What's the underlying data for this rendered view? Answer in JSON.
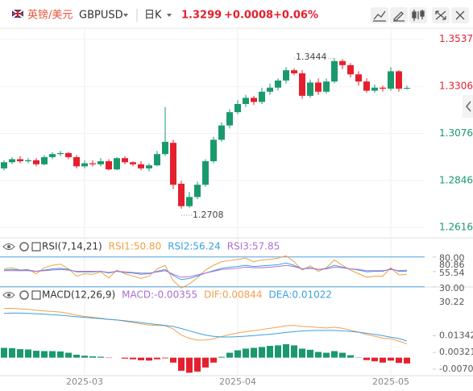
{
  "header": {
    "symbol_cn": "英镑/美元",
    "symbol": "GBPUSD",
    "period": "日K",
    "price": "1.3299",
    "change": "+0.0008",
    "change_pct": "+0.06%"
  },
  "chart_data": [
    {
      "type": "candlestick",
      "categories": [
        null,
        null,
        null,
        null,
        null,
        null,
        null,
        null,
        null,
        null,
        "2025-03",
        null,
        null,
        null,
        null,
        null,
        null,
        null,
        null,
        null,
        null,
        null,
        null,
        null,
        null,
        null,
        null,
        null,
        null,
        "2025-04",
        null,
        null,
        null,
        null,
        null,
        null,
        null,
        null,
        null,
        null,
        null,
        null,
        null,
        null,
        null,
        null,
        null,
        null,
        "2025-05",
        null,
        null
      ],
      "open": [
        1.2905,
        1.2935,
        1.295,
        1.294,
        1.2945,
        1.2925,
        1.296,
        1.2975,
        1.298,
        1.296,
        1.2915,
        1.293,
        1.2925,
        1.294,
        1.29,
        1.2955,
        1.2935,
        1.2925,
        1.2905,
        1.292,
        1.2975,
        1.303,
        1.283,
        1.272,
        1.2765,
        1.2825,
        1.294,
        1.3045,
        1.3115,
        1.318,
        1.322,
        1.325,
        1.323,
        1.328,
        1.33,
        1.3335,
        1.3385,
        1.337,
        1.326,
        1.3325,
        1.328,
        1.333,
        1.343,
        1.341,
        1.3365,
        1.333,
        1.3285,
        1.33,
        1.3295,
        1.338,
        1.3295
      ],
      "high": [
        1.2945,
        1.296,
        1.2965,
        1.2955,
        1.2955,
        1.297,
        1.2985,
        1.299,
        1.2985,
        1.297,
        1.2945,
        1.2945,
        1.2955,
        1.295,
        1.296,
        1.2965,
        1.294,
        1.294,
        1.293,
        1.299,
        1.3205,
        1.3045,
        1.2845,
        1.279,
        1.284,
        1.295,
        1.306,
        1.313,
        1.3195,
        1.324,
        1.3265,
        1.326,
        1.33,
        1.332,
        1.3345,
        1.34,
        1.3395,
        1.3385,
        1.334,
        1.3345,
        1.3345,
        1.3444,
        1.344,
        1.342,
        1.338,
        1.3345,
        1.3315,
        1.331,
        1.34,
        1.3385,
        1.331
      ],
      "low": [
        1.2895,
        1.2925,
        1.293,
        1.293,
        1.2915,
        1.292,
        1.295,
        1.2965,
        1.295,
        1.2905,
        1.2905,
        1.2915,
        1.2915,
        1.2895,
        1.2895,
        1.2925,
        1.2915,
        1.2895,
        1.289,
        1.2915,
        1.2965,
        1.2805,
        1.2708,
        1.2712,
        1.2755,
        1.2815,
        1.293,
        1.3035,
        1.31,
        1.317,
        1.3205,
        1.3215,
        1.322,
        1.3265,
        1.3285,
        1.332,
        1.336,
        1.3245,
        1.325,
        1.3265,
        1.327,
        1.332,
        1.339,
        1.335,
        1.331,
        1.3275,
        1.3275,
        1.328,
        1.3285,
        1.328,
        1.329
      ],
      "close": [
        1.2935,
        1.295,
        1.294,
        1.2945,
        1.2925,
        1.296,
        1.2975,
        1.298,
        1.296,
        1.2915,
        1.293,
        1.2925,
        1.294,
        1.29,
        1.2955,
        1.2935,
        1.2925,
        1.2905,
        1.292,
        1.2975,
        1.3035,
        1.2825,
        1.272,
        1.2765,
        1.2825,
        1.294,
        1.3045,
        1.3115,
        1.318,
        1.322,
        1.325,
        1.323,
        1.328,
        1.33,
        1.3335,
        1.3385,
        1.337,
        1.326,
        1.3325,
        1.328,
        1.333,
        1.343,
        1.341,
        1.3365,
        1.333,
        1.3285,
        1.33,
        1.3295,
        1.338,
        1.3295,
        1.3299
      ],
      "up_color": "#1a9a6c",
      "down_color": "#e5202e",
      "ylim": [
        1.2585,
        1.3571
      ],
      "yticks": [
        1.2616,
        1.2846,
        1.3076,
        1.3306,
        1.3537
      ],
      "grid": true,
      "high_label": "1.3444",
      "low_label": "1.2708"
    },
    {
      "type": "line",
      "title": "RSI(7,14,21)",
      "ylim": [
        27,
        108
      ],
      "yticks": [
        {
          "value": 80,
          "label": "80.00"
        },
        55.54,
        {
          "value": 30,
          "label": "30.00"
        }
      ],
      "reference_lines": [
        80,
        30
      ],
      "reference_color": "#4aa3df",
      "extra_labels": [
        "80.86",
        "30.22"
      ],
      "series": [
        {
          "name": "RSI1:50.80",
          "color": "#f0a040",
          "values": [
            60,
            62,
            58,
            59,
            52,
            62,
            66,
            68,
            60,
            48,
            52,
            51,
            55,
            45,
            58,
            52,
            48,
            44,
            48,
            60,
            66,
            40,
            28,
            35,
            45,
            58,
            66,
            72,
            74,
            76,
            78,
            72,
            75,
            76,
            78,
            82,
            72,
            58,
            65,
            56,
            62,
            75,
            66,
            58,
            52,
            46,
            48,
            48,
            62,
            50,
            50.8
          ]
        },
        {
          "name": "RSI2:56.24",
          "color": "#3aa0e0",
          "values": [
            58,
            59,
            58,
            58,
            56,
            58,
            60,
            61,
            59,
            55,
            55,
            55,
            56,
            53,
            56,
            54,
            53,
            51,
            52,
            56,
            59,
            49,
            42,
            44,
            48,
            53,
            57,
            61,
            63,
            64,
            66,
            64,
            65,
            66,
            67,
            70,
            66,
            60,
            62,
            59,
            61,
            66,
            63,
            60,
            58,
            55,
            56,
            56,
            60,
            56,
            56.24
          ]
        },
        {
          "name": "RSI3:57.85",
          "color": "#b070d0",
          "values": [
            57,
            57,
            57,
            57,
            56,
            57,
            58,
            59,
            58,
            56,
            56,
            56,
            56,
            54,
            56,
            55,
            54,
            53,
            53,
            55,
            57,
            51,
            46,
            47,
            50,
            53,
            56,
            59,
            60,
            61,
            63,
            62,
            62,
            63,
            64,
            66,
            64,
            60,
            61,
            59,
            60,
            63,
            62,
            60,
            59,
            57,
            57,
            57,
            59,
            57,
            57.85
          ]
        }
      ]
    },
    {
      "type": "macd",
      "title": "MACD(12,26,9)",
      "ylim": [
        -0.011,
        0.0323
      ],
      "yticks": [
        -0.00701,
        0.00321,
        0.01342
      ],
      "series": [
        {
          "name": "MACD:-0.00355",
          "color": "#a86fd0",
          "up_color": "#1a9a6c",
          "down_color": "#e5202e",
          "values": [
            0.006,
            0.0058,
            0.0052,
            0.005,
            0.0042,
            0.004,
            0.004,
            0.0038,
            0.003,
            0.0018,
            0.0012,
            0.0008,
            0.0006,
            -0.0002,
            0.0,
            -0.0006,
            -0.001,
            -0.0016,
            -0.0018,
            -0.001,
            -0.0004,
            -0.003,
            -0.008,
            -0.0092,
            -0.0085,
            -0.006,
            -0.003,
            0.0005,
            0.003,
            0.0045,
            0.0055,
            0.006,
            0.0065,
            0.0072,
            0.0075,
            0.0082,
            0.0075,
            0.0055,
            0.0048,
            0.0035,
            0.003,
            0.004,
            0.003,
            0.0015,
            0.0002,
            -0.0015,
            -0.0022,
            -0.003,
            -0.0018,
            -0.0032,
            -0.00355
          ]
        },
        {
          "name": "DIF:0.00844",
          "color": "#f0a050",
          "values": [
            0.03,
            0.0301,
            0.0298,
            0.0295,
            0.0289,
            0.0285,
            0.0282,
            0.0278,
            0.027,
            0.0259,
            0.0252,
            0.0246,
            0.0241,
            0.0233,
            0.023,
            0.0222,
            0.0215,
            0.0206,
            0.0199,
            0.0197,
            0.0195,
            0.0175,
            0.0138,
            0.0118,
            0.0107,
            0.0108,
            0.0115,
            0.0129,
            0.0141,
            0.0151,
            0.0159,
            0.0165,
            0.0172,
            0.0179,
            0.0186,
            0.0195,
            0.0197,
            0.0191,
            0.0189,
            0.0184,
            0.0181,
            0.0186,
            0.0179,
            0.0168,
            0.0156,
            0.0141,
            0.0131,
            0.0119,
            0.0116,
            0.0101,
            0.00844
          ]
        },
        {
          "name": "DEA:0.01022",
          "color": "#3aa0e0",
          "values": [
            0.027,
            0.0272,
            0.0272,
            0.027,
            0.0268,
            0.0265,
            0.0262,
            0.0259,
            0.0255,
            0.025,
            0.0246,
            0.0242,
            0.0238,
            0.0234,
            0.023,
            0.0225,
            0.022,
            0.0214,
            0.0208,
            0.0202,
            0.0197,
            0.019,
            0.0178,
            0.0164,
            0.015,
            0.0138,
            0.013,
            0.0126,
            0.0126,
            0.0128,
            0.0131,
            0.0135,
            0.0139,
            0.0143,
            0.0148,
            0.0154,
            0.0159,
            0.0163,
            0.0165,
            0.0166,
            0.0166,
            0.0166,
            0.0164,
            0.016,
            0.0155,
            0.0149,
            0.0142,
            0.0134,
            0.0125,
            0.0117,
            0.01022
          ]
        }
      ]
    }
  ]
}
